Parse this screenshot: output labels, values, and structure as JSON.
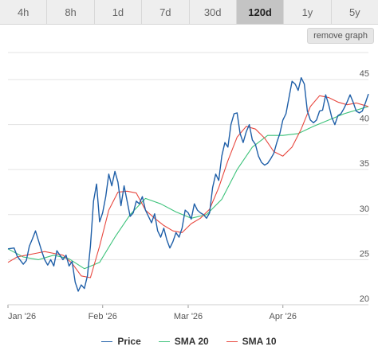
{
  "range_tabs": [
    {
      "label": "4h",
      "active": false
    },
    {
      "label": "8h",
      "active": false
    },
    {
      "label": "1d",
      "active": false
    },
    {
      "label": "7d",
      "active": false
    },
    {
      "label": "30d",
      "active": false
    },
    {
      "label": "120d",
      "active": true
    },
    {
      "label": "1y",
      "active": false
    },
    {
      "label": "5y",
      "active": false
    }
  ],
  "remove_graph_label": "remove graph",
  "colors": {
    "price": "#1f5fa8",
    "sma20": "#3cc27a",
    "sma10": "#e8483f",
    "grid": "#e3e3e3",
    "axis_text": "#555555"
  },
  "chart_data": {
    "type": "line",
    "x_range": [
      0,
      118
    ],
    "y_range": [
      20,
      48
    ],
    "y_ticks": [
      20,
      25,
      30,
      35,
      40,
      45
    ],
    "x_ticks": [
      {
        "x": 0,
        "label": "Jan '26"
      },
      {
        "x": 31,
        "label": "Feb '26"
      },
      {
        "x": 59,
        "label": "Mar '26"
      },
      {
        "x": 90,
        "label": "Apr '26"
      }
    ],
    "grid": true,
    "legend": "bottom",
    "series": [
      {
        "name": "Price",
        "color_key": "price",
        "x": [
          0,
          2,
          3,
          5,
          6,
          7,
          8,
          9,
          10,
          11,
          12,
          13,
          14,
          15,
          16,
          17,
          18,
          19,
          20,
          21,
          22,
          23,
          24,
          25,
          26,
          27,
          28,
          29,
          30,
          31,
          32,
          33,
          34,
          35,
          36,
          37,
          38,
          39,
          40,
          41,
          42,
          43,
          44,
          45,
          46,
          47,
          48,
          49,
          50,
          51,
          52,
          53,
          54,
          55,
          56,
          57,
          58,
          59,
          60,
          61,
          62,
          63,
          64,
          65,
          66,
          67,
          68,
          69,
          70,
          71,
          72,
          73,
          74,
          75,
          76,
          77,
          78,
          79,
          80,
          81,
          82,
          83,
          84,
          85,
          86,
          87,
          88,
          89,
          90,
          91,
          92,
          93,
          94,
          95,
          96,
          97,
          98,
          99,
          100,
          101,
          102,
          103,
          104,
          105,
          106,
          107,
          108,
          109,
          110,
          111,
          112,
          113,
          114,
          115,
          116,
          117,
          118
        ],
        "y": [
          26.2,
          26.3,
          25.4,
          24.5,
          24.9,
          26.5,
          27.3,
          28.2,
          27.1,
          26.0,
          25.0,
          24.4,
          25.0,
          24.3,
          26.0,
          25.5,
          25.0,
          25.5,
          24.3,
          24.8,
          22.5,
          21.5,
          22.2,
          21.8,
          23.2,
          26.5,
          31.5,
          33.4,
          29.2,
          30.2,
          32.0,
          34.5,
          33.2,
          34.8,
          33.6,
          31.0,
          33.2,
          31.5,
          29.8,
          30.2,
          31.5,
          31.2,
          32.0,
          30.5,
          29.8,
          29.1,
          30.1,
          28.2,
          27.5,
          28.5,
          27.2,
          26.3,
          27.0,
          28.0,
          27.5,
          28.5,
          30.5,
          30.2,
          29.5,
          31.2,
          30.5,
          30.2,
          30.0,
          29.6,
          30.2,
          33.0,
          34.5,
          33.8,
          36.5,
          38.0,
          37.5,
          40.0,
          41.2,
          41.3,
          39.0,
          38.0,
          39.2,
          40.0,
          38.3,
          37.8,
          36.5,
          35.8,
          35.5,
          35.7,
          36.2,
          36.8,
          38.0,
          39.0,
          40.5,
          41.2,
          43.0,
          44.8,
          44.5,
          43.8,
          45.2,
          44.5,
          41.5,
          40.5,
          40.2,
          40.5,
          41.5,
          41.6,
          43.3,
          42.2,
          40.8,
          40.0,
          41.0,
          41.2,
          41.8,
          42.5,
          43.3,
          42.5,
          41.5,
          41.3,
          41.5,
          42.4,
          43.4
        ]
      },
      {
        "name": "SMA 20",
        "color_key": "sma20",
        "x": [
          0,
          5,
          10,
          15,
          20,
          25,
          30,
          35,
          40,
          45,
          50,
          55,
          60,
          65,
          70,
          75,
          80,
          85,
          90,
          95,
          100,
          105,
          110,
          112,
          114,
          116,
          118
        ],
        "y": [
          26.2,
          25.3,
          25.0,
          25.5,
          25.1,
          24.0,
          24.7,
          27.5,
          30.0,
          31.8,
          31.2,
          30.3,
          29.6,
          30.0,
          31.7,
          35.0,
          37.5,
          38.8,
          38.8,
          39.0,
          39.8,
          40.5,
          41.2,
          41.4,
          41.6,
          41.8,
          42.0
        ]
      },
      {
        "name": "SMA 10",
        "color_key": "sma10",
        "x": [
          0,
          3,
          6,
          9,
          12,
          15,
          18,
          21,
          24,
          27,
          30,
          33,
          36,
          39,
          42,
          45,
          48,
          51,
          54,
          57,
          60,
          63,
          66,
          69,
          72,
          75,
          78,
          81,
          84,
          87,
          90,
          93,
          96,
          99,
          102,
          105,
          108,
          111,
          114,
          116,
          118
        ],
        "y": [
          24.7,
          25.3,
          25.5,
          25.7,
          25.9,
          25.7,
          25.5,
          24.6,
          23.2,
          23.0,
          26.5,
          30.5,
          32.5,
          32.6,
          32.4,
          30.5,
          29.6,
          28.8,
          28.2,
          28.0,
          29.0,
          29.6,
          30.6,
          33.0,
          36.0,
          38.6,
          39.8,
          39.5,
          38.5,
          37.0,
          36.5,
          37.5,
          39.5,
          42.0,
          43.2,
          43.0,
          42.5,
          42.2,
          42.4,
          42.2,
          42.0
        ]
      }
    ]
  }
}
